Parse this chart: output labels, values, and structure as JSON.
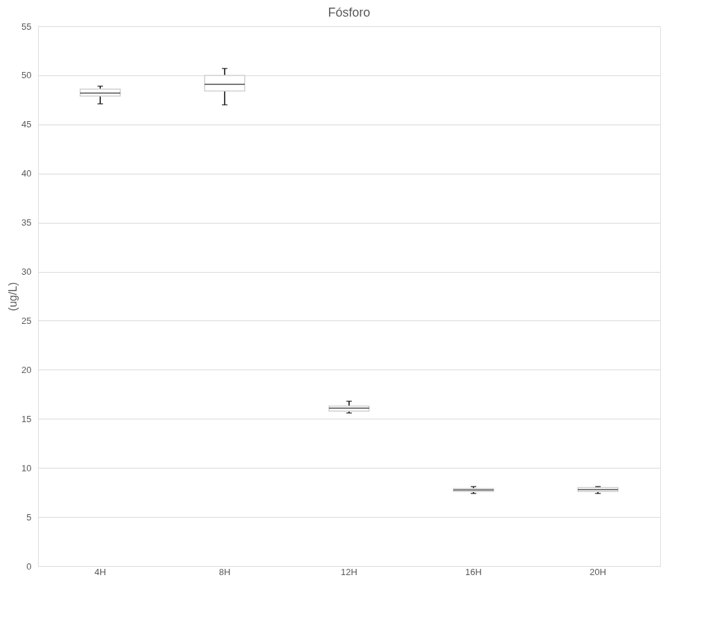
{
  "chart_data": {
    "type": "box",
    "title": "Fósforo",
    "ylabel": "(ug/L)",
    "categories": [
      "4H",
      "8H",
      "12H",
      "16H",
      "20H"
    ],
    "boxes": [
      {
        "low": 47.1,
        "q1": 47.9,
        "median": 48.2,
        "q3": 48.6,
        "high": 48.9
      },
      {
        "low": 47.0,
        "q1": 48.4,
        "median": 49.1,
        "q3": 50.0,
        "high": 50.7
      },
      {
        "low": 15.6,
        "q1": 15.8,
        "median": 16.1,
        "q3": 16.3,
        "high": 16.8
      },
      {
        "low": 7.4,
        "q1": 7.6,
        "median": 7.75,
        "q3": 7.9,
        "high": 8.1
      },
      {
        "low": 7.4,
        "q1": 7.6,
        "median": 7.8,
        "q3": 8.0,
        "high": 8.1
      }
    ],
    "ylim": [
      0,
      55
    ],
    "yticks": [
      0,
      5,
      10,
      15,
      20,
      25,
      30,
      35,
      40,
      45,
      50,
      55
    ],
    "grid": "y"
  }
}
